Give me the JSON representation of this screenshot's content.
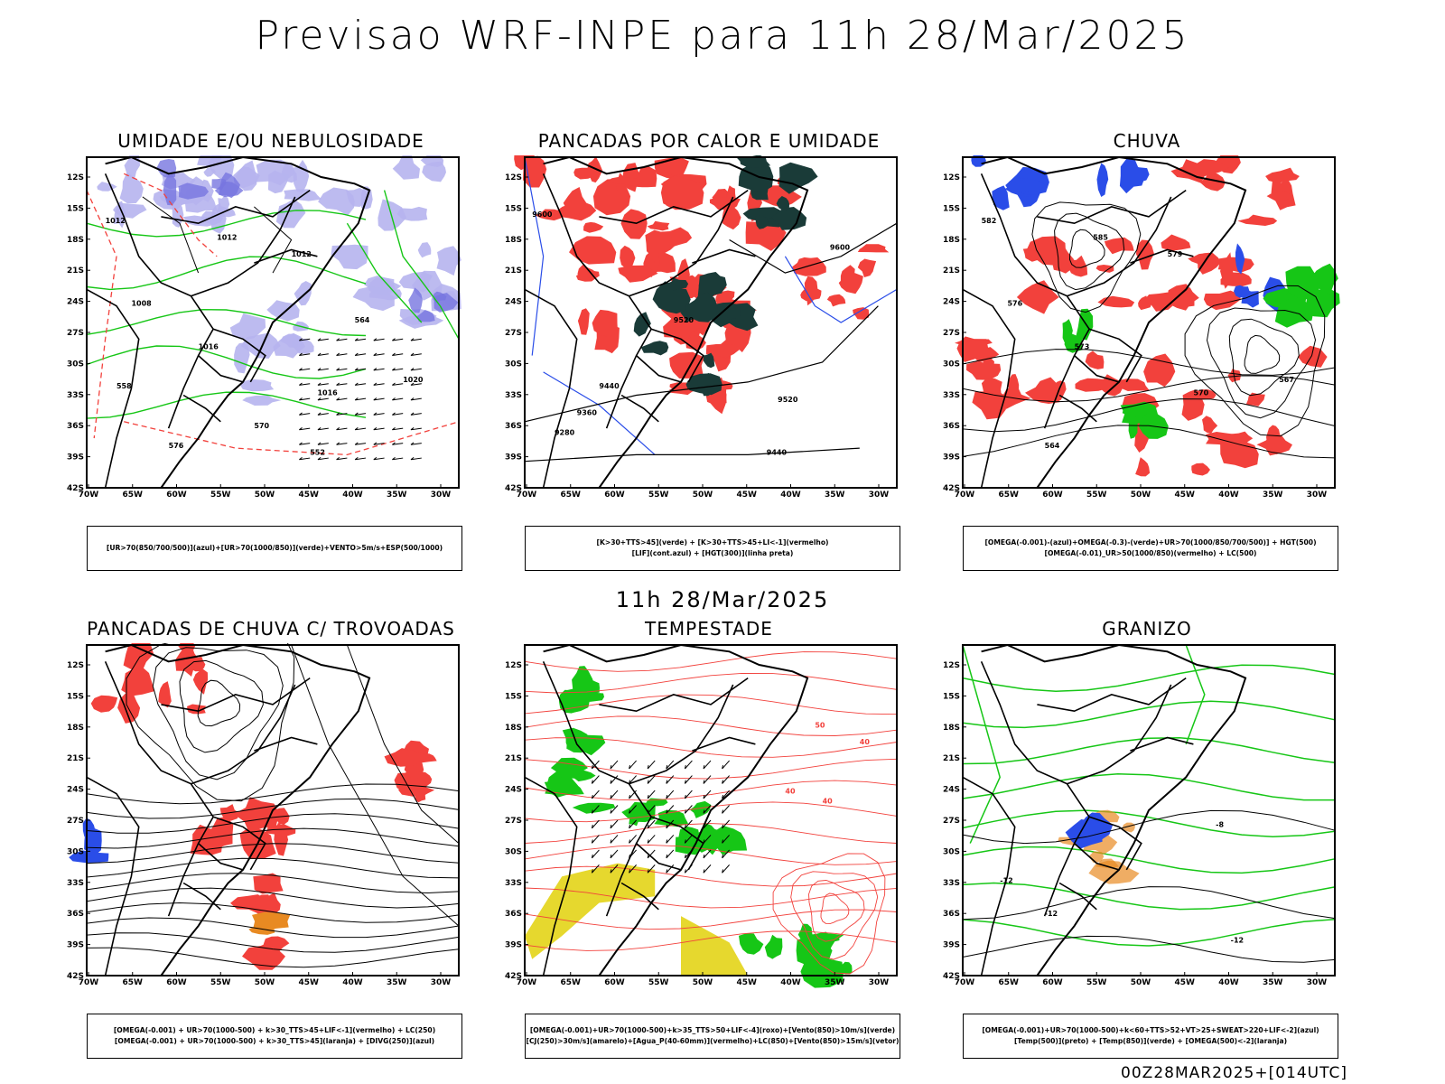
{
  "header": {
    "title": "Previsao WRF-INPE  para 11h 28/Mar/2025",
    "mid_date": "11h 28/Mar/2025",
    "footer": "00Z28MAR2025+[014UTC]"
  },
  "axes": {
    "lon_labels": [
      "70W",
      "65W",
      "60W",
      "55W",
      "50W",
      "45W",
      "40W",
      "35W",
      "30W"
    ],
    "lat_labels": [
      "12S",
      "15S",
      "18S",
      "21S",
      "24S",
      "27S",
      "30S",
      "33S",
      "36S",
      "39S",
      "42S"
    ]
  },
  "panels": [
    {
      "id": "umidade",
      "title": "UMIDADE E/OU NEBULOSIDADE",
      "legend": [
        "[UR>70(850/700/500)](azul)+[UR>70(1000/850)](verde)+VENTO>5m/s+ESP(500/1000)"
      ],
      "contour_labels": [
        "1012",
        "1012",
        "1012",
        "1008",
        "1016",
        "1016",
        "1020",
        "576",
        "570",
        "564",
        "558",
        "552"
      ]
    },
    {
      "id": "pancadas-calor",
      "title": "PANCADAS POR CALOR E UMIDADE",
      "legend": [
        "[K>30+TTS>45](verde) + [K>30+TTS>45+LI<-1](vermelho)",
        "[LIF](cont.azul) + [HGT(300)](linha preta)"
      ],
      "contour_labels": [
        "9600",
        "9600",
        "9520",
        "9440",
        "9360",
        "9280",
        "9520",
        "9440"
      ]
    },
    {
      "id": "chuva",
      "title": "CHUVA",
      "legend": [
        "[OMEGA(-0.001)-(azul)+OMEGA(-0.3)-(verde)+UR>70(1000/850/700/500)] + HGT(500)",
        "[OMEGA(-0.01)_UR>50(1000/850)(vermelho) + LC(500)"
      ],
      "contour_labels": [
        "582",
        "585",
        "579",
        "576",
        "573",
        "570",
        "567",
        "564"
      ]
    },
    {
      "id": "pancadas-trovoadas",
      "title": "PANCADAS DE CHUVA C/ TROVOADAS",
      "legend": [
        "[OMEGA(-0.001) + UR>70(1000-500) + k>30_TTS>45+LIF<-1](vermelho) + LC(250)",
        "[OMEGA(-0.001) + UR>70(1000-500) + k>30_TTS>45](laranja) + [DIVG(250)](azul)"
      ],
      "contour_labels": []
    },
    {
      "id": "tempestade",
      "title": "TEMPESTADE",
      "legend": [
        "[OMEGA(-0.001)+UR>70(1000-500)+k>35_TTS>50+LIF<-4](roxo)+[Vento(850)>10m/s](verde)",
        "[CJ(250)>30m/s](amarelo)+[Agua_P(40-60mm)](vermelho)+LC(850)+[Vento(850)>15m/s](vetor)"
      ],
      "contour_labels": [
        "50",
        "40",
        "40",
        "40"
      ]
    },
    {
      "id": "granizo",
      "title": "GRANIZO",
      "legend": [
        "[OMEGA(-0.001)+UR>70(1000-500)+k<60+TTS>52+VT>25+SWEAT>220+LIF<-2](azul)",
        "[Temp(500)](preto) + [Temp(850)](verde) + [OMEGA(500)<-2](laranja)"
      ],
      "contour_labels": [
        "-12",
        "-12",
        "-12",
        "-8"
      ]
    }
  ],
  "colors": {
    "red": "#f2413c",
    "green": "#16c616",
    "blue": "#2a4de8",
    "lavender": "#b6b4ee",
    "darkgreen": "#1a3b38",
    "yellow": "#e6d82e",
    "orange": "#e88a22"
  }
}
